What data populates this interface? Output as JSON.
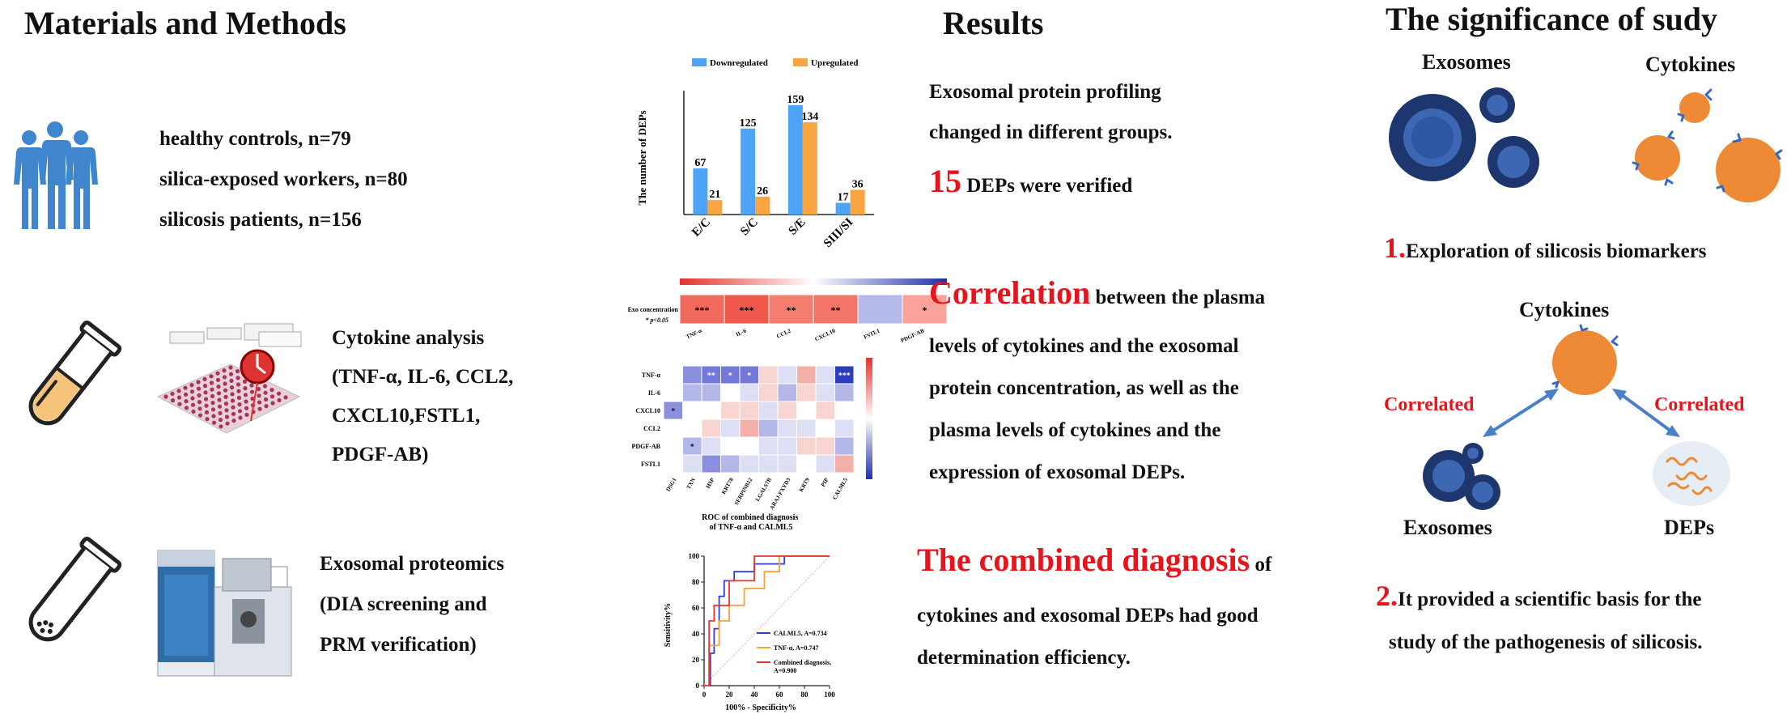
{
  "materials": {
    "header": "Materials and Methods",
    "cohort": [
      "healthy controls, n=79",
      "silica-exposed workers, n=80",
      "silicosis patients, n=156"
    ],
    "cytokine_title": "Cytokine analysis",
    "cytokine_items": [
      "(TNF-α, IL-6, CCL2,",
      "CXCL10,FSTL1,",
      "PDGF-AB)"
    ],
    "proteomics_title": "Exosomal proteomics",
    "proteomics_items": [
      "(DIA  screening and",
      "PRM verification)"
    ]
  },
  "results": {
    "header": "Results",
    "r1_line1": "Exosomal protein profiling",
    "r1_line2": "changed in different groups.",
    "r1_number": "15",
    "r1_tail": "DEPs were verified",
    "r2_big": "Correlation",
    "r2_first": "between the plasma",
    "r2_lines": [
      "levels of cytokines and the exosomal",
      "protein concentration, as well as the",
      "plasma  levels of cytokines and the",
      "expression of exosomal DEPs."
    ],
    "r3_big": "The combined diagnosis",
    "r3_first": "of",
    "r3_lines": [
      "cytokines and exosomal DEPs had good",
      "determination efficiency."
    ]
  },
  "significance": {
    "header": "The significance of sudy",
    "exosomes_label": "Exosomes",
    "cytokines_label": "Cytokines",
    "point1_num": "1.",
    "point1_text": "Exploration of silicosis biomarkers",
    "cytokines_label2": "Cytokines",
    "correlated_left": "Correlated",
    "correlated_right": "Correlated",
    "exosomes_label2": "Exosomes",
    "deps_label": "DEPs",
    "point2_num": "2.",
    "point2_text": "It provided a scientific basis for the",
    "point2_text2": "study of the pathogenesis of silicosis."
  },
  "colors": {
    "downregulated": "#4da3f5",
    "upregulated": "#f9a541",
    "red_text": "#e8141c",
    "exosome_dark": "#1f3b73",
    "cytokine_orange": "#ee8a35",
    "arrow_blue": "#4a80c8"
  },
  "heatmap": {
    "row_label": "Exo concentration",
    "pvalue_note": "* p<0.05",
    "cells": [
      "***",
      "***",
      "**",
      "**",
      "",
      "*"
    ],
    "cols": [
      "TNF-α",
      "IL-6",
      "CCL2",
      "CXCL10",
      "FSTL1",
      "PDGF-AB"
    ]
  },
  "heatmap2": {
    "rows": [
      "TNF-α",
      "IL-6",
      "CXCL10",
      "CCL2",
      "PDGF-AB",
      "FSTL1"
    ],
    "cols": [
      "DSG1",
      "TXN",
      "HSP",
      "KRT78",
      "SERPINB12",
      "LGALS7B",
      "ARAJ-FXYD3",
      "KRT9",
      "PIP",
      "CALML5"
    ]
  },
  "chart_data": [
    {
      "type": "bar",
      "ylabel": "The number of DEPs",
      "categories": [
        "E/C",
        "S/C",
        "S/E",
        "SIII/SI"
      ],
      "series": [
        {
          "name": "Downregulated",
          "values": [
            67,
            125,
            159,
            17
          ]
        },
        {
          "name": "Upregulated",
          "values": [
            21,
            26,
            134,
            36
          ]
        }
      ],
      "legend": "top"
    },
    {
      "type": "line",
      "title": "ROC of combined diagnosis of TNF-α and CALML5",
      "xlabel": "100% - Specificity%",
      "ylabel": "Sensitivity%",
      "xlim": [
        0,
        100
      ],
      "ylim": [
        0,
        100
      ],
      "xticks": [
        0,
        20,
        40,
        60,
        80,
        100
      ],
      "yticks": [
        0,
        20,
        40,
        60,
        80,
        100
      ],
      "series": [
        {
          "name": "CALML5, A=0.734",
          "color": "#2f3fd8",
          "x": [
            0,
            5,
            5,
            8,
            8,
            12,
            12,
            16,
            16,
            24,
            24,
            40,
            40,
            64,
            64,
            100
          ],
          "y": [
            0,
            0,
            25,
            25,
            44,
            44,
            69,
            69,
            81,
            81,
            88,
            88,
            94,
            94,
            100,
            100
          ]
        },
        {
          "name": "TNF-α, A=0.747",
          "color": "#f6a33b",
          "x": [
            0,
            4,
            4,
            12,
            12,
            20,
            20,
            32,
            32,
            48,
            48,
            60,
            60,
            100
          ],
          "y": [
            0,
            0,
            31,
            31,
            50,
            50,
            62,
            62,
            75,
            75,
            88,
            88,
            100,
            100
          ]
        },
        {
          "name": "Combined diagnosis, A=0.900",
          "color": "#e83535",
          "x": [
            0,
            4,
            4,
            8,
            8,
            20,
            20,
            40,
            40,
            100
          ],
          "y": [
            0,
            0,
            50,
            50,
            62,
            62,
            81,
            81,
            100,
            100
          ]
        }
      ]
    }
  ]
}
